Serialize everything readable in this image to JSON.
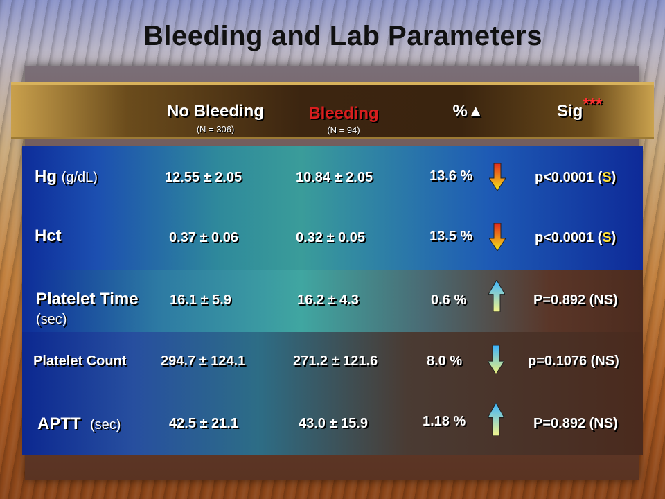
{
  "title": "Bleeding and Lab Parameters",
  "header": {
    "no_bleeding": "No Bleeding",
    "no_bleeding_n": "(N = 306)",
    "bleeding": "Bleeding",
    "bleeding_n": "(N = 94)",
    "percent": "%▲",
    "sig": "Sig",
    "sig_sup": "***"
  },
  "rows": [
    {
      "label": "Hg",
      "unit": "(g/dL)",
      "no_bleeding": "12.55 ± 2.05",
      "bleeding": "10.84 ± 2.05",
      "percent": "13.6 %",
      "direction": "down",
      "sig_prefix": "p<0.0001 (",
      "sig_mark": "S",
      "sig_suffix": ")"
    },
    {
      "label": "Hct",
      "unit": "",
      "no_bleeding": "0.37 ± 0.06",
      "bleeding": "0.32 ± 0.05",
      "percent": "13.5 %",
      "direction": "down",
      "sig_prefix": "p<0.0001 (",
      "sig_mark": "S",
      "sig_suffix": ")"
    },
    {
      "label": "Platelet Time",
      "unit": "(sec)",
      "no_bleeding": "16.1 ± 5.9",
      "bleeding": "16.2 ± 4.3",
      "percent": "0.6 %",
      "direction": "up",
      "sig": "P=0.892 (NS)"
    },
    {
      "label": "Platelet Count",
      "unit": "",
      "no_bleeding": "294.7 ± 124.1",
      "bleeding": "271.2 ± 121.6",
      "percent": "8.0 %",
      "direction": "down",
      "sig": "p=0.1076 (NS)"
    },
    {
      "label": "APTT",
      "unit": "(sec)",
      "no_bleeding": "42.5 ± 21.1",
      "bleeding": "43.0 ± 15.9",
      "percent": "1.18 %",
      "direction": "up",
      "sig": "P=0.892 (NS)"
    }
  ],
  "colors": {
    "bleeding_header": "#d81e1e",
    "significant_mark": "#ffe23a",
    "arrow_down_top": "#e5281a",
    "arrow_down_bottom": "#f2e81a",
    "arrow_up_top": "#3ab3ff",
    "arrow_up_bottom": "#f5f58a"
  },
  "icons": {
    "down": "arrow-down-icon",
    "up": "arrow-up-icon"
  }
}
